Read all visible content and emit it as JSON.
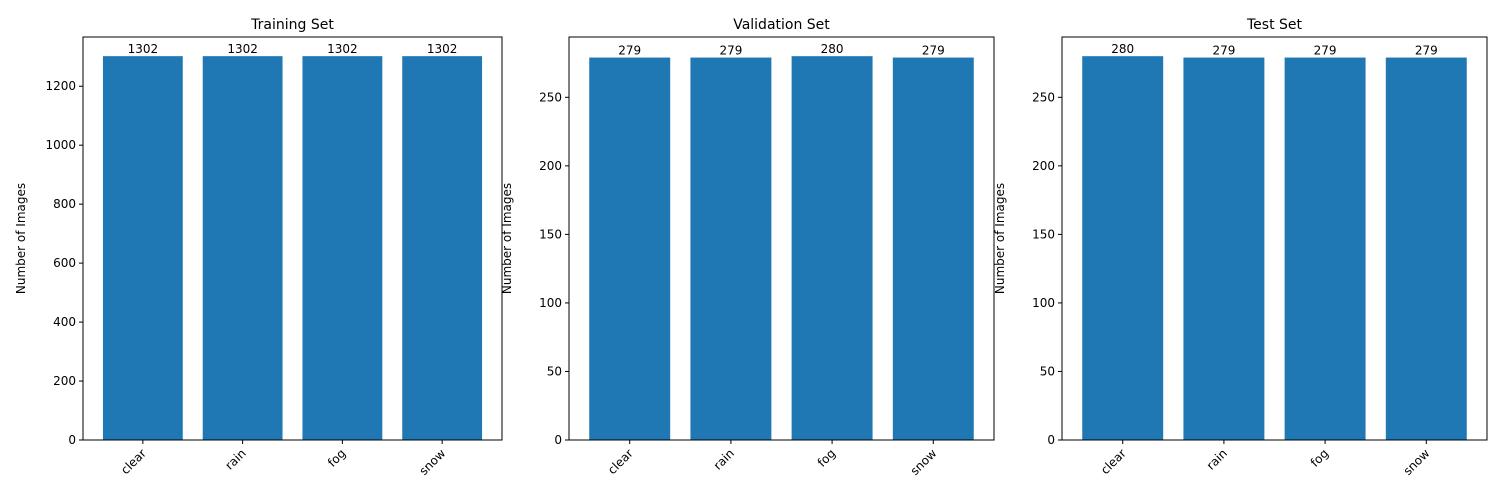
{
  "figure": {
    "background": "#ffffff",
    "bar_color": "#1f77b4"
  },
  "chart_data": [
    {
      "type": "bar",
      "title": "Training Set",
      "xlabel": "",
      "ylabel": "Number of Images",
      "categories": [
        "clear",
        "rain",
        "fog",
        "snow"
      ],
      "values": [
        1302,
        1302,
        1302,
        1302
      ],
      "data_labels": [
        "1302",
        "1302",
        "1302",
        "1302"
      ],
      "ylim": [
        0,
        1367
      ],
      "yticks": [
        0,
        200,
        400,
        600,
        800,
        1000,
        1200
      ],
      "ytick_labels": [
        "0",
        "200",
        "400",
        "600",
        "800",
        "1000",
        "1200"
      ],
      "xtick_rotation": 45,
      "grid": false,
      "legend": "none"
    },
    {
      "type": "bar",
      "title": "Validation Set",
      "xlabel": "",
      "ylabel": "Number of Images",
      "categories": [
        "clear",
        "rain",
        "fog",
        "snow"
      ],
      "values": [
        279,
        279,
        280,
        279
      ],
      "data_labels": [
        "279",
        "279",
        "280",
        "279"
      ],
      "ylim": [
        0,
        294
      ],
      "yticks": [
        0,
        50,
        100,
        150,
        200,
        250
      ],
      "ytick_labels": [
        "0",
        "50",
        "100",
        "150",
        "200",
        "250"
      ],
      "xtick_rotation": 45,
      "grid": false,
      "legend": "none"
    },
    {
      "type": "bar",
      "title": "Test Set",
      "xlabel": "",
      "ylabel": "Number of Images",
      "categories": [
        "clear",
        "rain",
        "fog",
        "snow"
      ],
      "values": [
        280,
        279,
        279,
        279
      ],
      "data_labels": [
        "280",
        "279",
        "279",
        "279"
      ],
      "ylim": [
        0,
        294
      ],
      "yticks": [
        0,
        50,
        100,
        150,
        200,
        250
      ],
      "ytick_labels": [
        "0",
        "50",
        "100",
        "150",
        "200",
        "250"
      ],
      "xtick_rotation": 45,
      "grid": false,
      "legend": "none"
    }
  ]
}
